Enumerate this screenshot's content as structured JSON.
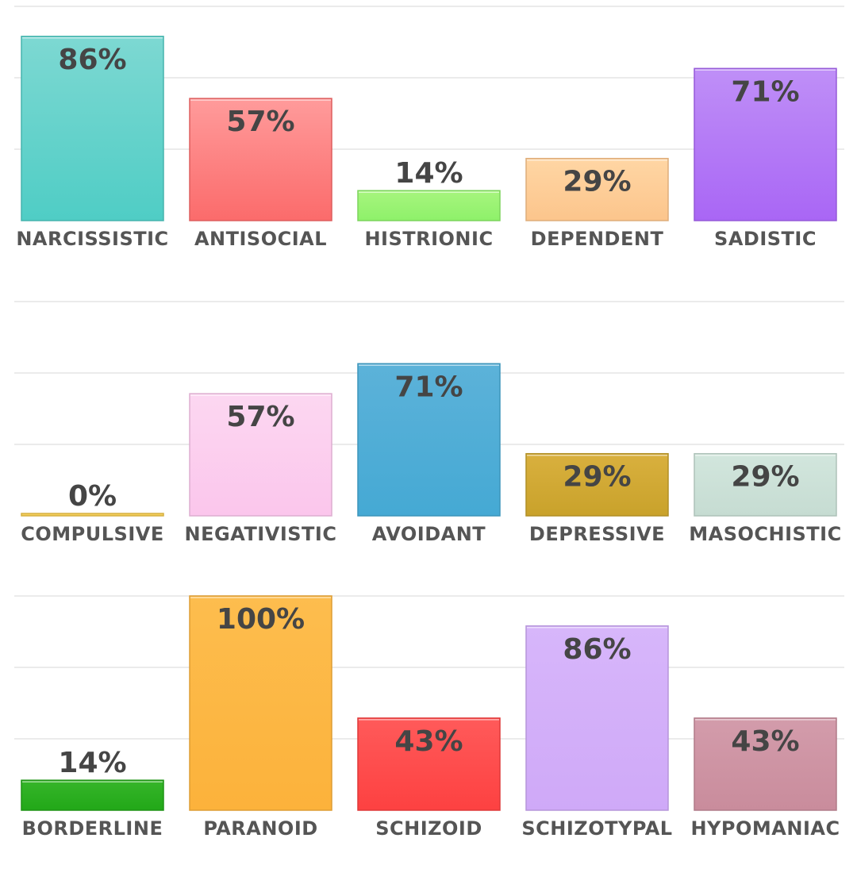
{
  "chart_data": [
    {
      "type": "bar",
      "categories": [
        "NARCISSISTIC",
        "ANTISOCIAL",
        "HISTRIONIC",
        "DEPENDENT",
        "SADISTIC"
      ],
      "values": [
        86,
        57,
        14,
        29,
        71
      ],
      "labels": [
        "86%",
        "57%",
        "14%",
        "29%",
        "71%"
      ],
      "colors": [
        [
          "#7dd8d2",
          "#4fcdc5"
        ],
        [
          "#ff9b9b",
          "#fb6b6b"
        ],
        [
          "#a7f57e",
          "#8ef16a"
        ],
        [
          "#ffd6a4",
          "#fcc58c"
        ],
        [
          "#bf8ff7",
          "#a966f5"
        ]
      ],
      "ylim": [
        0,
        100
      ],
      "grid": true
    },
    {
      "type": "bar",
      "categories": [
        "COMPULSIVE",
        "NEGATIVISTIC",
        "AVOIDANT",
        "DEPRESSIVE",
        "MASOCHISTIC"
      ],
      "values": [
        0,
        57,
        71,
        29,
        29
      ],
      "labels": [
        "0%",
        "57%",
        "71%",
        "29%",
        "29%"
      ],
      "colors": [
        [
          "#f7d36b",
          "#f2c94c"
        ],
        [
          "#fcd7f1",
          "#fbc6ec"
        ],
        [
          "#5cb2d9",
          "#45a9d4"
        ],
        [
          "#d9b03e",
          "#c9a22b"
        ],
        [
          "#d2e6dd",
          "#c6dcd2"
        ]
      ],
      "ylim": [
        0,
        100
      ],
      "grid": true
    },
    {
      "type": "bar",
      "categories": [
        "BORDERLINE",
        "PARANOID",
        "SCHIZOID",
        "SCHIZOTYPAL",
        "HYPOMANIAC"
      ],
      "values": [
        14,
        100,
        43,
        86,
        43
      ],
      "labels": [
        "14%",
        "100%",
        "43%",
        "86%",
        "43%"
      ],
      "colors": [
        [
          "#36b52a",
          "#22a818"
        ],
        [
          "#fdbd4e",
          "#fcb23b"
        ],
        [
          "#ff5a5a",
          "#fd4141"
        ],
        [
          "#d7b6fa",
          "#cfa9f8"
        ],
        [
          "#d39cab",
          "#c98c9c"
        ]
      ],
      "ylim": [
        0,
        100
      ],
      "grid": true
    }
  ]
}
